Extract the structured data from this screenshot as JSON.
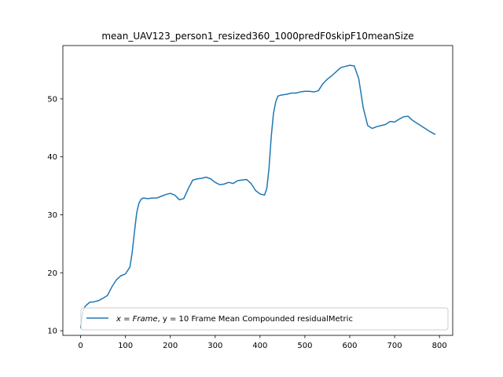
{
  "chart_data": {
    "type": "line",
    "title": "mean_UAV123_person1_resized360_1000predF0skipF10meanSize",
    "xlabel": "",
    "ylabel": "",
    "xlim": [
      -39.5,
      829.5
    ],
    "ylim": [
      9.2,
      59.2
    ],
    "xticks": [
      0,
      100,
      200,
      300,
      400,
      500,
      600,
      700,
      800
    ],
    "yticks": [
      10,
      20,
      30,
      40,
      50
    ],
    "grid": false,
    "legend_position": "lower-right",
    "color": "#1f77b4",
    "series": [
      {
        "name_math": "x = Frame",
        "name_rest": ", y = 10 Frame Mean Compounded residualMetric",
        "x": [
          0,
          5,
          10,
          20,
          30,
          40,
          50,
          60,
          70,
          80,
          90,
          100,
          110,
          115,
          120,
          125,
          130,
          135,
          140,
          150,
          160,
          170,
          180,
          190,
          200,
          210,
          220,
          230,
          240,
          250,
          260,
          270,
          280,
          290,
          300,
          310,
          320,
          330,
          340,
          350,
          360,
          370,
          380,
          390,
          400,
          410,
          415,
          420,
          425,
          430,
          435,
          440,
          450,
          460,
          470,
          480,
          490,
          500,
          510,
          520,
          530,
          540,
          550,
          560,
          570,
          580,
          590,
          600,
          610,
          620,
          630,
          640,
          650,
          660,
          670,
          680,
          690,
          700,
          710,
          720,
          730,
          740,
          750,
          760,
          770,
          780,
          790
        ],
        "y": [
          10.5,
          13.2,
          14.2,
          14.9,
          15.0,
          15.2,
          15.6,
          16.1,
          17.6,
          18.8,
          19.5,
          19.8,
          21.0,
          23.5,
          27.0,
          30.3,
          32.0,
          32.7,
          32.9,
          32.8,
          32.9,
          32.9,
          33.2,
          33.5,
          33.7,
          33.4,
          32.6,
          32.8,
          34.5,
          36.0,
          36.2,
          36.3,
          36.5,
          36.2,
          35.6,
          35.2,
          35.3,
          35.6,
          35.4,
          35.9,
          36.0,
          36.1,
          35.4,
          34.2,
          33.6,
          33.4,
          34.5,
          38.0,
          43.5,
          47.5,
          49.5,
          50.5,
          50.7,
          50.8,
          51.0,
          51.0,
          51.2,
          51.3,
          51.3,
          51.2,
          51.4,
          52.6,
          53.4,
          54.0,
          54.7,
          55.4,
          55.6,
          55.8,
          55.7,
          53.5,
          48.5,
          45.4,
          44.9,
          45.2,
          45.4,
          45.6,
          46.1,
          46.0,
          46.5,
          46.9,
          47.0,
          46.3,
          45.8,
          45.3,
          44.8,
          44.3,
          43.9
        ]
      }
    ]
  }
}
